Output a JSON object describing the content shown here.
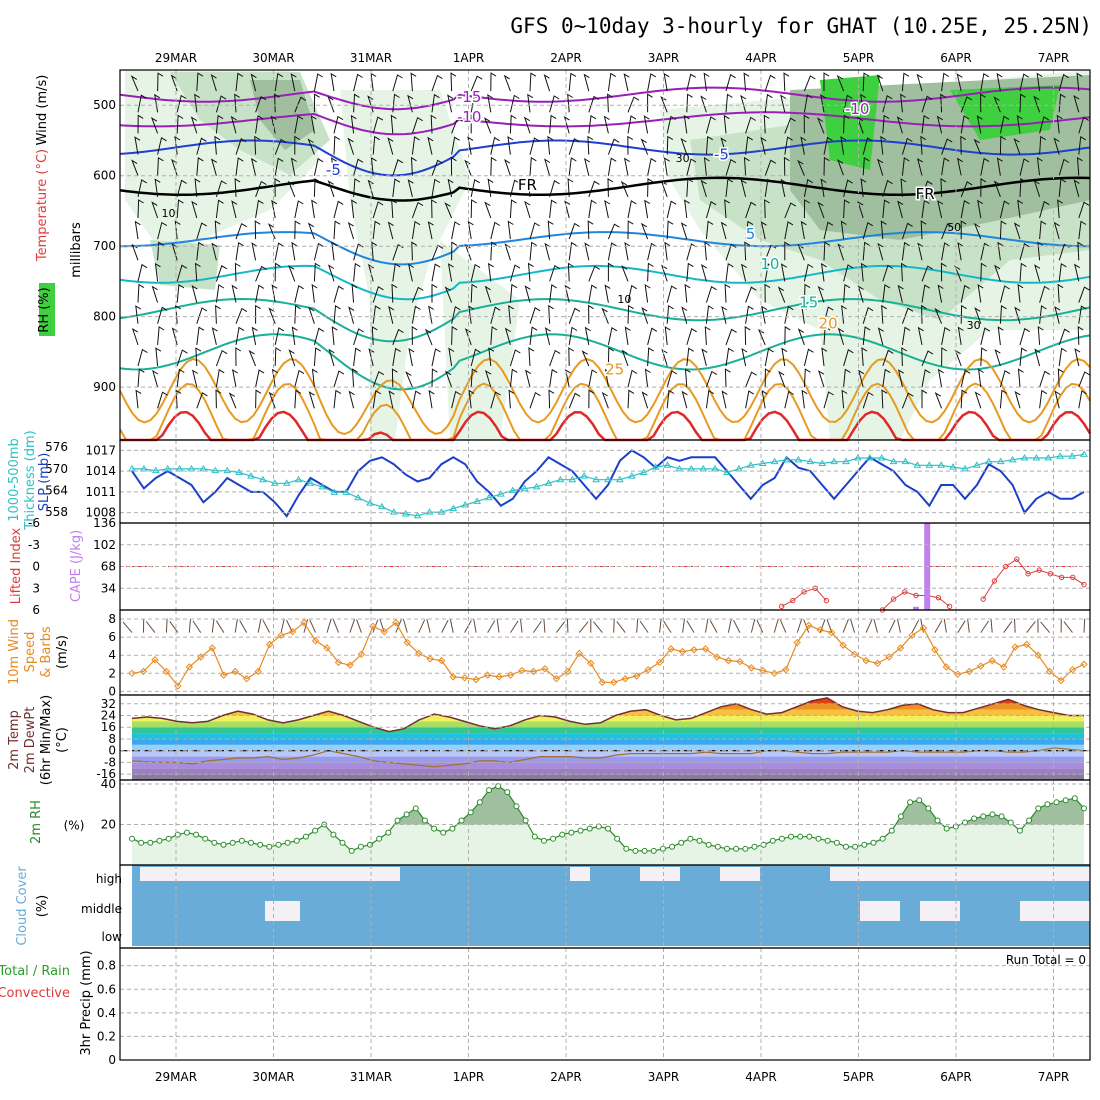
{
  "title": "GFS 0~10day 3-hourly for GHAT (10.25E, 25.25N)",
  "dates": [
    "29MAR",
    "30MAR",
    "31MAR",
    "1APR",
    "2APR",
    "3APR",
    "4APR",
    "5APR",
    "6APR",
    "7APR"
  ],
  "colors": {
    "grid": "#b0b0b0",
    "gridDash": "4,3",
    "frame": "#000000",
    "rhLight": "#e6f4e6",
    "rhMid": "#c8e2c8",
    "rhDark": "#9fbf9f",
    "rhGreen": "#3fd03f",
    "isoPurple": "#9a1fb8",
    "isoDarkBlue": "#1f3fd0",
    "isoBlue": "#1f86e0",
    "isoCyan": "#13b8c8",
    "isoTeal": "#18b096",
    "isoOrange": "#e89a20",
    "isoRed": "#e02828",
    "slp": "#1a3fc8",
    "thick": "#2cc0c8",
    "li": "#e03a3a",
    "cape": "#c080f0",
    "wind10": "#e88a20",
    "tempLine": "#703030",
    "dew": "#a07030",
    "rhLine": "#2a8a2a",
    "cloudBlue": "#6aacd8",
    "cloudWhite": "#f4f0f6"
  },
  "chart_data": [
    {
      "type": "contour",
      "name": "upper-air cross section",
      "ylabel": "millibars",
      "yticks": [
        500,
        600,
        700,
        800,
        900
      ],
      "ylim": [
        450,
        975
      ],
      "left_labels": [
        "Wind (m/s)",
        "Temperature (°C)",
        "RH (%)"
      ],
      "isotherm_labels": [
        {
          "text": "-15",
          "t": 0.36,
          "p": 488
        },
        {
          "text": "-10",
          "t": 0.36,
          "p": 517
        },
        {
          "text": "-10",
          "t": 0.76,
          "p": 505
        },
        {
          "text": "-5",
          "t": 0.22,
          "p": 592
        },
        {
          "text": "-5",
          "t": 0.62,
          "p": 570
        },
        {
          "text": "FR",
          "t": 0.42,
          "p": 613
        },
        {
          "text": "FR",
          "t": 0.83,
          "p": 626
        },
        {
          "text": "5",
          "t": 0.65,
          "p": 683
        },
        {
          "text": "10",
          "t": 0.67,
          "p": 725
        },
        {
          "text": "15",
          "t": 0.71,
          "p": 780
        },
        {
          "text": "20",
          "t": 0.73,
          "p": 810
        },
        {
          "text": "25",
          "t": 0.51,
          "p": 875
        }
      ],
      "rh_labels": [
        {
          "text": "30",
          "t": 0.58,
          "p": 575
        },
        {
          "text": "10",
          "t": 0.52,
          "p": 775
        },
        {
          "text": "50",
          "t": 0.86,
          "p": 673
        },
        {
          "text": "30",
          "t": 0.88,
          "p": 812
        },
        {
          "text": "10",
          "t": 0.05,
          "p": 653
        }
      ]
    },
    {
      "type": "line",
      "name": "SLP and thickness",
      "left_labels": [
        "1000-500mb",
        "Thickness (dm)",
        "SLP (mb)"
      ],
      "thickness_ticks": [
        558,
        564,
        570,
        576
      ],
      "slp_ticks": [
        1008,
        1011,
        1014,
        1017
      ],
      "series": [
        {
          "name": "SLP (mb)",
          "values": [
            1014,
            1011.5,
            1013,
            1014,
            1013,
            1012,
            1009.5,
            1011,
            1013,
            1012,
            1011,
            1011,
            1009.5,
            1007.5,
            1010.5,
            1013,
            1012,
            1011,
            1011,
            1014,
            1015.5,
            1016,
            1015,
            1013.5,
            1012.5,
            1013,
            1015,
            1016,
            1015,
            1012.5,
            1011,
            1009,
            1010,
            1012.5,
            1014,
            1016,
            1015,
            1014,
            1012,
            1010,
            1012,
            1015.5,
            1017,
            1016,
            1014.5,
            1016,
            1015.5,
            1016,
            1016,
            1016,
            1014,
            1012,
            1010,
            1012,
            1013,
            1016,
            1014.5,
            1014,
            1012,
            1010,
            1012,
            1014,
            1016,
            1015,
            1014,
            1012,
            1011,
            1009,
            1012,
            1012,
            1010,
            1012,
            1015,
            1014,
            1012,
            1008,
            1010,
            1011,
            1010,
            1010,
            1011
          ]
        },
        {
          "name": "Thickness (dm)",
          "values": [
            570,
            570,
            569.5,
            570,
            570,
            570,
            570,
            569.5,
            569.5,
            569,
            568,
            567,
            566,
            566,
            567,
            566,
            565,
            563.5,
            563.5,
            562,
            560.5,
            559.5,
            558,
            557.5,
            557,
            558,
            558,
            559,
            560,
            561,
            562,
            563,
            564,
            564.5,
            565,
            566,
            567,
            567,
            568,
            567,
            567,
            567,
            568,
            569,
            570.5,
            571,
            570,
            570,
            570,
            570,
            569,
            570,
            571,
            571.5,
            572,
            572.5,
            572.5,
            572,
            571.5,
            572,
            572,
            573,
            573,
            573,
            572,
            572,
            571,
            571,
            571,
            570.5,
            570,
            571,
            572,
            572,
            572.5,
            573,
            573,
            573,
            573.5,
            573.5,
            574
          ]
        }
      ]
    },
    {
      "type": "line",
      "name": "Lifted index and CAPE",
      "left_labels": [
        "Lifted Index",
        "CAPE (J/kg)"
      ],
      "li_ticks": [
        -6,
        -3,
        0,
        3,
        6
      ],
      "cape_ticks": [
        34,
        68,
        102,
        136
      ],
      "li_values": [
        null,
        null,
        null,
        null,
        null,
        null,
        null,
        null,
        null,
        null,
        null,
        null,
        null,
        null,
        null,
        null,
        null,
        null,
        null,
        null,
        null,
        null,
        null,
        null,
        null,
        null,
        null,
        null,
        null,
        null,
        null,
        null,
        null,
        null,
        null,
        null,
        null,
        null,
        null,
        null,
        null,
        null,
        null,
        null,
        null,
        null,
        null,
        null,
        null,
        null,
        null,
        null,
        null,
        null,
        null,
        null,
        null,
        null,
        5.5,
        4.7,
        3.5,
        3,
        4.7,
        null,
        null,
        null,
        null,
        6,
        4.5,
        3.5,
        4,
        4,
        4.3,
        5.5,
        null,
        null,
        4.5,
        2,
        0,
        -1,
        1,
        0.5,
        1,
        1.5,
        1.5,
        2.5
      ],
      "cape_bars": [
        {
          "i": 70,
          "value": 5
        },
        {
          "i": 71,
          "value": 136
        }
      ]
    },
    {
      "type": "line",
      "name": "10m wind speed and barbs",
      "left_labels": [
        "10m Wind",
        "Speed",
        "& Barbs",
        "(m/s)"
      ],
      "yticks": [
        0,
        2,
        4,
        6,
        8
      ],
      "values": [
        2,
        2.2,
        3.5,
        2.2,
        0.6,
        2.7,
        3.8,
        4.8,
        1.8,
        2.2,
        1.4,
        2.2,
        5.2,
        6.2,
        6.6,
        7.6,
        5.6,
        4.8,
        3.2,
        2.9,
        4.1,
        7.2,
        6.6,
        7.6,
        5.4,
        4.2,
        3.6,
        3.4,
        1.6,
        1.5,
        1.3,
        1.8,
        1.6,
        1.8,
        2.3,
        2.2,
        2.5,
        1.4,
        2.2,
        4.2,
        3.1,
        1,
        1,
        1.4,
        1.7,
        2.4,
        3.2,
        4.7,
        4.4,
        4.6,
        4.7,
        3.8,
        3.4,
        3.3,
        2.6,
        2.3,
        2,
        2.4,
        5.4,
        7.3,
        6.8,
        6.5,
        5.1,
        4.1,
        3.4,
        3.1,
        3.8,
        4.8,
        6.2,
        7,
        4.6,
        2.7,
        1.9,
        2.2,
        2.8,
        3.4,
        2.7,
        4.9,
        5.2,
        4,
        2.2,
        1.2,
        2.4,
        3
      ]
    },
    {
      "type": "area",
      "name": "2m temperature and dewpoint",
      "left_labels": [
        "2m Temp",
        "2m DewPt",
        "(6hr Min/Max)",
        "(°C)"
      ],
      "yticks": [
        -16,
        -8,
        0,
        8,
        16,
        24,
        32
      ],
      "temp": [
        22,
        23,
        22,
        20,
        19,
        20,
        24,
        27,
        25,
        21,
        19,
        21,
        24,
        27,
        24,
        20,
        16,
        13,
        15,
        21,
        25,
        23,
        20,
        17,
        15,
        17,
        21,
        24,
        23,
        20,
        18,
        19,
        24,
        27,
        28,
        24,
        21,
        22,
        26,
        30,
        32,
        28,
        25,
        26,
        30,
        34,
        36,
        30,
        27,
        26,
        28,
        31,
        32,
        28,
        26,
        26,
        29,
        32,
        35,
        31,
        28,
        26,
        24,
        24
      ],
      "dew": [
        -7,
        -7.5,
        -8,
        -8,
        -9,
        -7,
        -6,
        -5,
        -5,
        -4,
        -6,
        -5,
        -3,
        0,
        -2,
        -4,
        -7,
        -8,
        -9,
        -10,
        -11,
        -10,
        -9,
        -7,
        -7,
        -8,
        -6,
        -4,
        -4,
        -4,
        -5,
        -5,
        -3,
        -2,
        -2,
        -2,
        -2,
        -2,
        -1,
        -2,
        -2,
        -2,
        0,
        0,
        -1,
        -2,
        -2,
        -1,
        -1,
        -1,
        -1,
        0,
        -1,
        -1,
        -1,
        -1,
        0,
        0,
        -1,
        -1,
        0,
        2,
        1,
        0
      ]
    },
    {
      "type": "area",
      "name": "2m relative humidity",
      "left_labels": [
        "2m RH"
      ],
      "yunit": "(%)",
      "yticks": [
        20,
        40
      ],
      "values": [
        13,
        11,
        11,
        12,
        13,
        15,
        16,
        15,
        13,
        11,
        10,
        11,
        12,
        11,
        10,
        9,
        10,
        11,
        12,
        14,
        17,
        20,
        15,
        11,
        7,
        9,
        10,
        13,
        16,
        22,
        25,
        28,
        22,
        18,
        16,
        18,
        22,
        26,
        31,
        37,
        39,
        36,
        29,
        22,
        14,
        12,
        13,
        15,
        16,
        17,
        18,
        19,
        18,
        13,
        8,
        7,
        7,
        7,
        8,
        9,
        11,
        13,
        12,
        10,
        9,
        8,
        8,
        8,
        9,
        10,
        12,
        13,
        14,
        14,
        14,
        13,
        12,
        11,
        9,
        9,
        10,
        11,
        13,
        17,
        24,
        31,
        32,
        28,
        22,
        18,
        19,
        21,
        23,
        24,
        25,
        24,
        21,
        17,
        22,
        28,
        30,
        31,
        32,
        33,
        28
      ]
    },
    {
      "type": "heatmap",
      "name": "cloud cover",
      "left_labels": [
        "Cloud Cover",
        "(%)"
      ],
      "rows": [
        "high",
        "middle",
        "low"
      ]
    },
    {
      "type": "bar",
      "name": "3hr precip",
      "left_labels": [
        "Total / Rain",
        "Convective",
        "3hr Precip (mm)"
      ],
      "yticks": [
        0,
        0.2,
        0.4,
        0.6,
        0.8
      ],
      "annotation": "Run Total = 0",
      "values": []
    }
  ]
}
